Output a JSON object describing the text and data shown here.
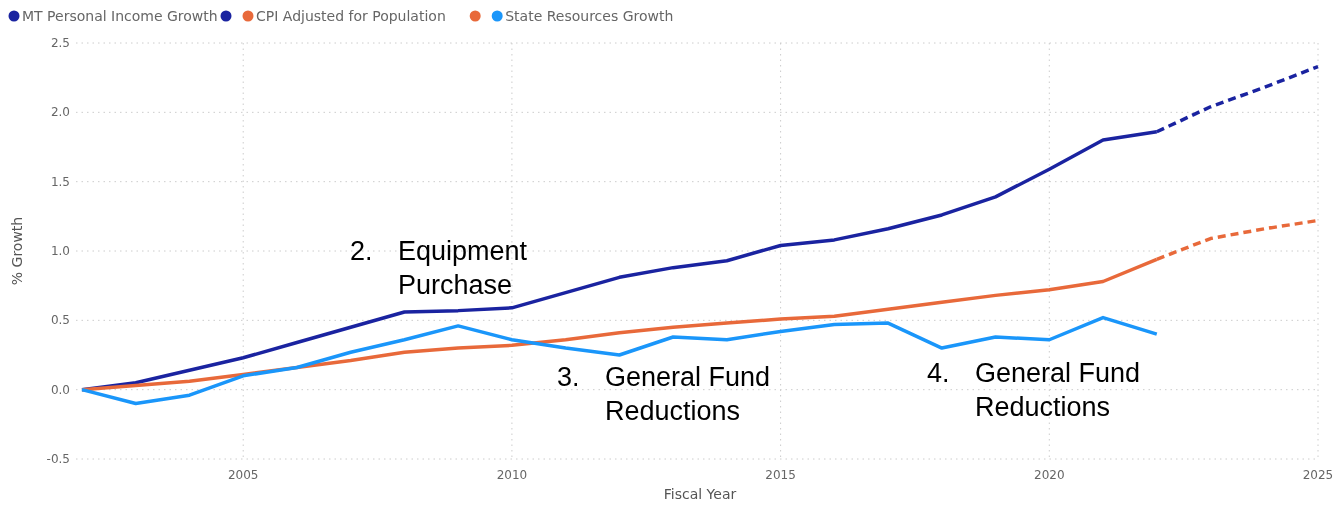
{
  "chart_data": {
    "type": "line",
    "xlabel": "Fiscal Year",
    "ylabel": "% Growth",
    "xlim": [
      2002,
      2025
    ],
    "xticks": [
      2005,
      2010,
      2015,
      2020,
      2025
    ],
    "ylim": [
      -0.5,
      2.5
    ],
    "yticks": [
      {
        "value": -0.5,
        "label": "-0.5"
      },
      {
        "value": 0,
        "label": "0.0"
      },
      {
        "value": 0.5,
        "label": "0.5"
      },
      {
        "value": 1,
        "label": "1.0"
      },
      {
        "value": 1.5,
        "label": "1.5"
      },
      {
        "value": 2,
        "label": "2.0"
      },
      {
        "value": 2.5,
        "label": "2.5"
      }
    ],
    "grid": true,
    "legend": "top left",
    "marker": "none",
    "annotations": [
      "2. Equipment\nPurchase",
      "3. General Fund\nReductions",
      "4. General Fund\nReductions"
    ],
    "series": [
      {
        "name": "MT Personal Income Growth",
        "color": "#1a23a0",
        "x": [
          2002,
          2003,
          2004,
          2005,
          2006,
          2007,
          2008,
          2009,
          2010,
          2011,
          2012,
          2013,
          2014,
          2015,
          2016,
          2017,
          2018,
          2019,
          2020,
          2021,
          2022
        ],
        "values": [
          0,
          0.05,
          0.14,
          0.23,
          0.34,
          0.45,
          0.56,
          0.57,
          0.59,
          0.7,
          0.81,
          0.88,
          0.93,
          1.04,
          1.08,
          1.16,
          1.26,
          1.39,
          1.59,
          1.8,
          1.86
        ]
      },
      {
        "color": "#1a23a0",
        "line_style": "dashed",
        "x": [
          2022,
          2023,
          2024,
          2025
        ],
        "values": [
          1.86,
          2.04,
          2.18,
          2.33
        ]
      },
      {
        "name": "CPI Adjusted for Population",
        "color": "#e8693a",
        "x": [
          2002,
          2003,
          2004,
          2005,
          2006,
          2007,
          2008,
          2009,
          2010,
          2011,
          2012,
          2013,
          2014,
          2015,
          2016,
          2017,
          2018,
          2019,
          2020,
          2021,
          2022
        ],
        "values": [
          0,
          0.03,
          0.06,
          0.11,
          0.16,
          0.21,
          0.27,
          0.3,
          0.32,
          0.36,
          0.41,
          0.45,
          0.48,
          0.51,
          0.53,
          0.58,
          0.63,
          0.68,
          0.72,
          0.78,
          0.94
        ]
      },
      {
        "color": "#e8693a",
        "line_style": "dashed",
        "x": [
          2022,
          2023,
          2024,
          2025
        ],
        "values": [
          0.94,
          1.09,
          1.16,
          1.22
        ]
      },
      {
        "name": "State Resources Growth",
        "color": "#1a96fa",
        "x": [
          2002,
          2003,
          2004,
          2005,
          2006,
          2007,
          2008,
          2009,
          2010,
          2011,
          2012,
          2013,
          2014,
          2015,
          2016,
          2017,
          2018,
          2019,
          2020,
          2021,
          2022
        ],
        "values": [
          0,
          -0.1,
          -0.04,
          0.1,
          0.16,
          0.27,
          0.36,
          0.46,
          0.36,
          0.3,
          0.25,
          0.38,
          0.36,
          0.42,
          0.47,
          0.48,
          0.3,
          0.38,
          0.36,
          0.52,
          0.4
        ]
      }
    ]
  }
}
